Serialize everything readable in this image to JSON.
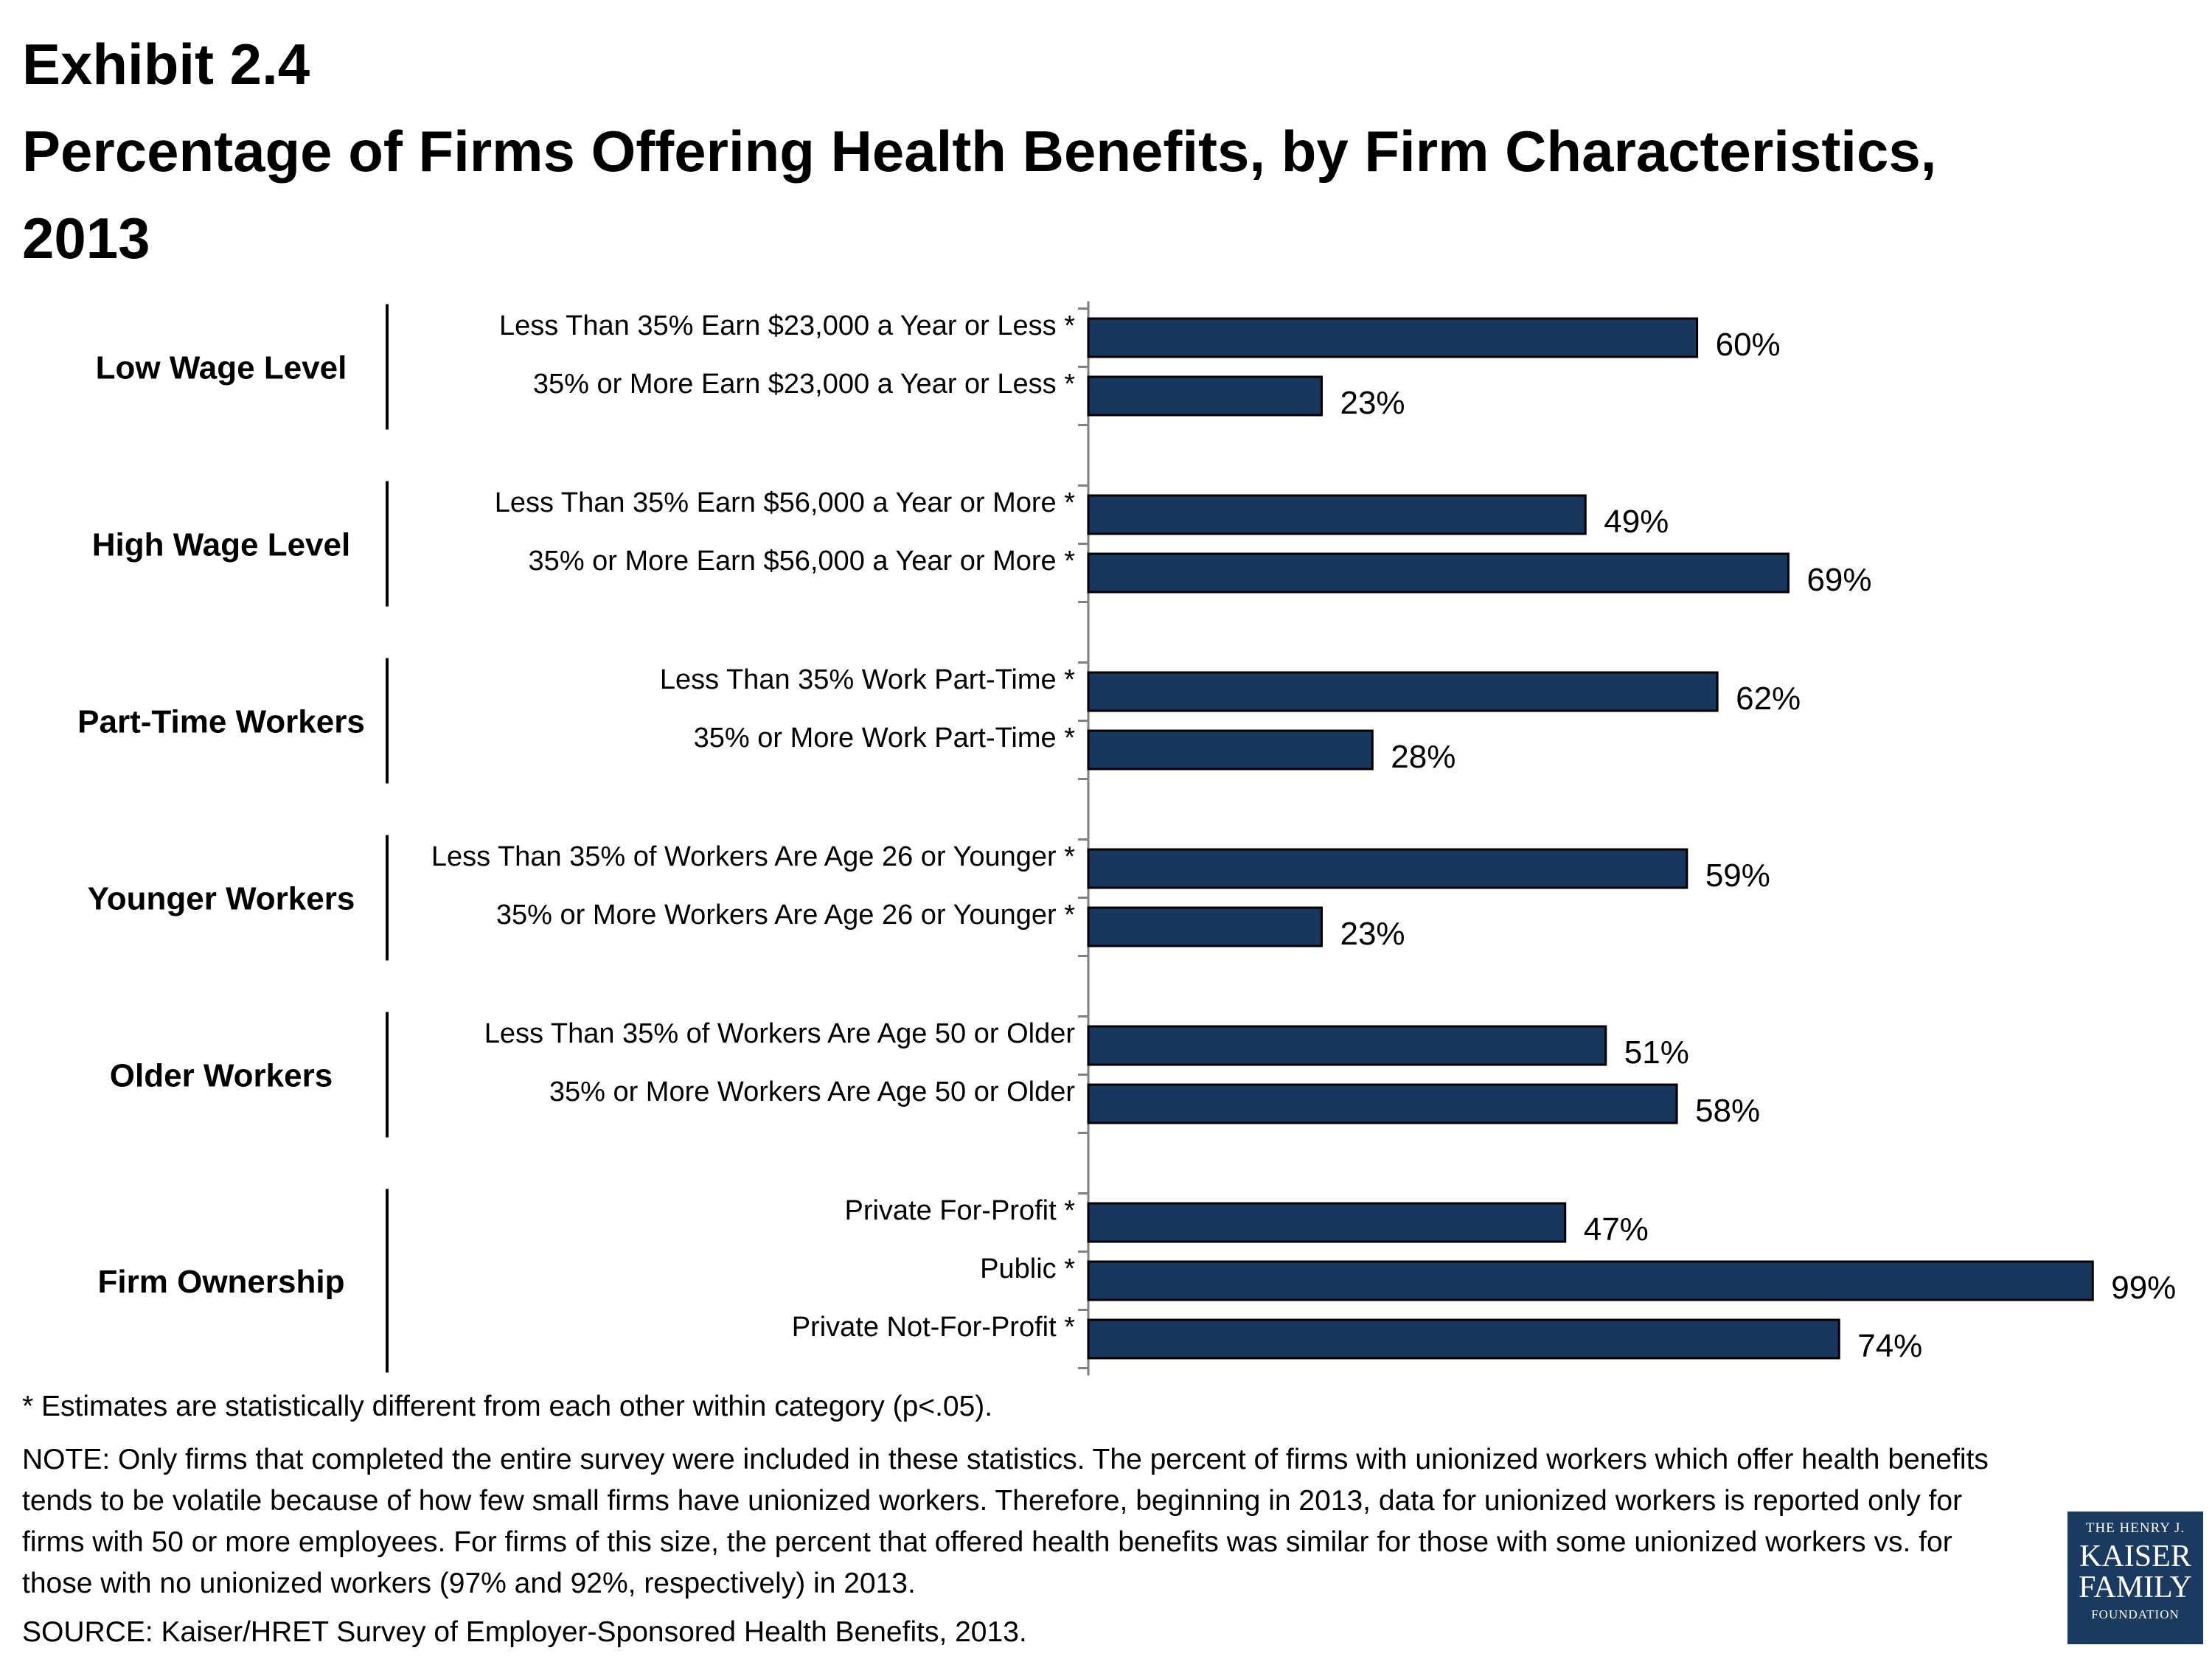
{
  "title": {
    "line1": "Exhibit 2.4",
    "line2": "Percentage of Firms Offering Health Benefits, by Firm Characteristics,",
    "line3": "2013"
  },
  "colors": {
    "bar": "#17375e",
    "bar_stroke": "#000000",
    "axis": "#808080"
  },
  "chart_data": {
    "type": "bar",
    "orientation": "horizontal",
    "value_suffix": "%",
    "xlim": [
      0,
      100
    ],
    "grid": false,
    "groups": [
      {
        "name": "Low Wage Level",
        "items": [
          {
            "label": "Less Than 35% Earn $23,000 a Year or Less *",
            "value": 60
          },
          {
            "label": "35% or More Earn $23,000 a Year or Less *",
            "value": 23
          }
        ]
      },
      {
        "name": "High Wage Level",
        "items": [
          {
            "label": "Less Than 35% Earn $56,000 a Year or More *",
            "value": 49
          },
          {
            "label": "35% or More Earn $56,000 a Year or More *",
            "value": 69
          }
        ]
      },
      {
        "name": "Part-Time Workers",
        "items": [
          {
            "label": "Less Than 35% Work Part-Time *",
            "value": 62
          },
          {
            "label": "35% or More Work Part-Time *",
            "value": 28
          }
        ]
      },
      {
        "name": "Younger Workers",
        "items": [
          {
            "label": "Less Than 35% of Workers Are Age 26 or Younger *",
            "value": 59
          },
          {
            "label": "35% or More Workers Are Age 26 or Younger *",
            "value": 23
          }
        ]
      },
      {
        "name": "Older Workers",
        "items": [
          {
            "label": "Less Than 35% of Workers Are Age 50 or Older",
            "value": 51
          },
          {
            "label": "35% or More Workers Are Age 50 or Older",
            "value": 58
          }
        ]
      },
      {
        "name": "Firm Ownership",
        "items": [
          {
            "label": "Private For-Profit *",
            "value": 47
          },
          {
            "label": "Public *",
            "value": 99
          },
          {
            "label": "Private Not-For-Profit *",
            "value": 74
          }
        ]
      }
    ]
  },
  "notes": {
    "asterisk": "* Estimates are statistically different from each other within category (p<.05).",
    "note": "NOTE: Only firms that completed the entire survey were included in these statistics. The percent of firms with unionized workers which offer health benefits tends to be volatile because of how few small firms have unionized workers. Therefore, beginning in 2013, data for unionized workers is reported only for firms with 50 or more employees. For firms of this size, the percent that offered health benefits was similar for those with some unionized workers vs. for those with no unionized workers (97% and 92%, respectively) in 2013.",
    "source": "SOURCE: Kaiser/HRET Survey of Employer-Sponsored Health Benefits, 2013."
  },
  "logo": {
    "line1": "THE HENRY J.",
    "line2": "KAISER",
    "line3": "FAMILY",
    "line4": "FOUNDATION"
  }
}
